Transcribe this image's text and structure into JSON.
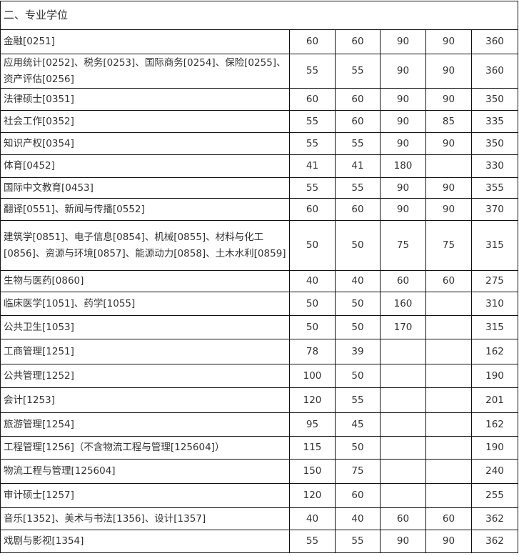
{
  "section_title": "二、专业学位",
  "rows": [
    {
      "name": "金融[0251]",
      "v": [
        "60",
        "60",
        "90",
        "90",
        "360"
      ]
    },
    {
      "name": "应用统计[0252]、税务[0253]、国际商务[0254]、保险[0255]、资产评估[0256]",
      "v": [
        "55",
        "55",
        "90",
        "90",
        "360"
      ]
    },
    {
      "name": "法律硕士[0351]",
      "v": [
        "60",
        "60",
        "90",
        "90",
        "350"
      ]
    },
    {
      "name": "社会工作[0352]",
      "v": [
        "55",
        "60",
        "90",
        "85",
        "335"
      ]
    },
    {
      "name": "知识产权[0354]",
      "v": [
        "55",
        "55",
        "90",
        "90",
        "350"
      ]
    },
    {
      "name": "体育[0452]",
      "v": [
        "41",
        "41",
        "180",
        "",
        "330"
      ]
    },
    {
      "name": "国际中文教育[0453]",
      "v": [
        "55",
        "55",
        "90",
        "90",
        "355"
      ]
    },
    {
      "name": "翻译[0551]、新闻与传播[0552]",
      "v": [
        "60",
        "60",
        "90",
        "90",
        "370"
      ]
    },
    {
      "name": "建筑学[0851]、电子信息[0854]、机械[0855]、材料与化工[0856]、资源与环境[0857]、能源动力[0858]、土木水利[0859]",
      "v": [
        "50",
        "50",
        "75",
        "75",
        "315"
      ]
    },
    {
      "name": "生物与医药[0860]",
      "v": [
        "40",
        "40",
        "60",
        "60",
        "275"
      ]
    },
    {
      "name": "临床医学[1051]、药学[1055]",
      "v": [
        "50",
        "50",
        "160",
        "",
        "310"
      ]
    },
    {
      "name": "公共卫生[1053]",
      "v": [
        "50",
        "50",
        "170",
        "",
        "315"
      ]
    },
    {
      "name": "工商管理[1251]",
      "v": [
        "78",
        "39",
        "",
        "",
        "162"
      ]
    },
    {
      "name": "公共管理[1252]",
      "v": [
        "100",
        "50",
        "",
        "",
        "190"
      ]
    },
    {
      "name": "会计[1253]",
      "v": [
        "120",
        "55",
        "",
        "",
        "201"
      ]
    },
    {
      "name": "旅游管理[1254]",
      "v": [
        "95",
        "45",
        "",
        "",
        "162"
      ]
    },
    {
      "name": "工程管理[1256]（不含物流工程与管理[125604]）",
      "v": [
        "115",
        "50",
        "",
        "",
        "190"
      ]
    },
    {
      "name": "物流工程与管理[125604]",
      "v": [
        "150",
        "75",
        "",
        "",
        "240"
      ]
    },
    {
      "name": "审计硕士[1257]",
      "v": [
        "120",
        "60",
        "",
        "",
        "255"
      ]
    },
    {
      "name": "音乐[1352]、美术与书法[1356]、设计[1357]",
      "v": [
        "40",
        "40",
        "60",
        "60",
        "362"
      ]
    },
    {
      "name": "戏剧与影视[1354]",
      "v": [
        "55",
        "55",
        "90",
        "90",
        "362"
      ]
    }
  ]
}
